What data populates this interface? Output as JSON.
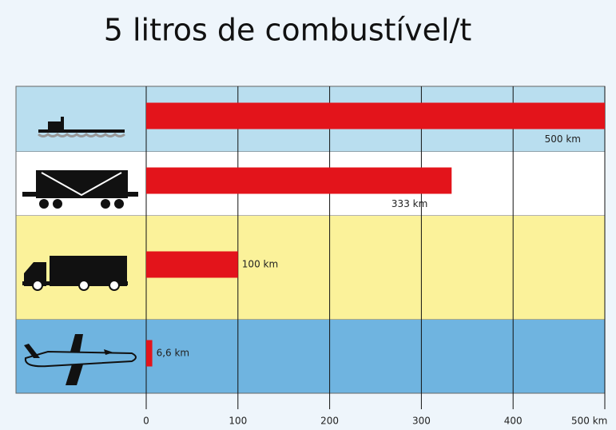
{
  "chart_data": {
    "type": "hbar",
    "title": "5 litros de combustível/t",
    "categories": [
      null,
      null,
      null,
      null
    ],
    "values": [
      500,
      333,
      100,
      6.6
    ],
    "value_labels": [
      "500 km",
      "333 km",
      "100 km",
      "6,6 km"
    ],
    "color": "#e3141b",
    "band_colors": [
      "#b9deef",
      "#ffffff",
      "#fbf29a",
      "#6fb4e0"
    ],
    "xlim": [
      0,
      500
    ],
    "xticks": [
      0,
      100,
      200,
      300,
      400,
      {
        "value": 500,
        "label": "500 km"
      }
    ],
    "grid": true
  }
}
